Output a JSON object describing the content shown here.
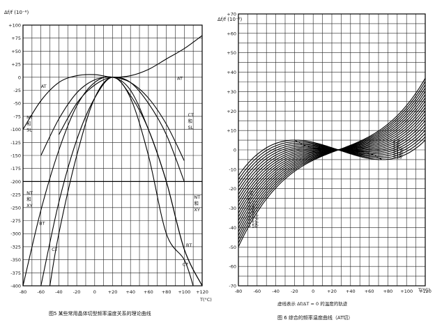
{
  "chart_data": [
    {
      "type": "line",
      "ylabel": "Δf/f (10⁻⁶)",
      "xlabel": "T(°C)",
      "caption": "图5 某些常用晶体切型频率温度关系的理论曲线",
      "xlim": [
        -80,
        120
      ],
      "ylim": [
        -400,
        100
      ],
      "x_ticks": [
        "-80",
        "-60",
        "-40",
        "-20",
        "0",
        "+20",
        "+40",
        "+60",
        "+80",
        "+100",
        "+120"
      ],
      "y_ticks": [
        "+100",
        "+75",
        "+50",
        "+25",
        "0",
        "-25",
        "-50",
        "-75",
        "-100",
        "-125",
        "-150",
        "-175",
        "-200",
        "-225",
        "-250",
        "-275",
        "-300",
        "-325",
        "-350",
        "-375",
        "-400"
      ],
      "grid": true,
      "series": [
        {
          "name": "AT",
          "x": [
            -80,
            -60,
            -40,
            -20,
            0,
            20,
            40,
            60,
            80,
            100,
            120
          ],
          "y": [
            -100,
            -45,
            -10,
            3,
            5,
            0,
            3,
            15,
            35,
            55,
            80
          ]
        },
        {
          "name": "NT 和 SL",
          "x": [
            -60,
            -40,
            -20,
            0,
            20,
            40,
            60,
            80,
            100
          ],
          "y": [
            -150,
            -80,
            -30,
            -5,
            0,
            -10,
            -40,
            -90,
            -160
          ]
        },
        {
          "name": "CT 和 SL",
          "x": [
            -40,
            -20,
            0,
            20,
            40,
            60,
            80,
            100
          ],
          "y": [
            -110,
            -50,
            -15,
            0,
            -10,
            -50,
            -110,
            -200
          ]
        },
        {
          "name": "NT 和 XY",
          "x": [
            -80,
            -60,
            -40,
            -20,
            0,
            20,
            40,
            60,
            80,
            100,
            120
          ],
          "y": [
            -400,
            -255,
            -140,
            -55,
            -10,
            0,
            -25,
            -100,
            -200,
            -330,
            -400
          ]
        },
        {
          "name": "BT",
          "x": [
            -60,
            -40,
            -20,
            0,
            20,
            40,
            60,
            80,
            100,
            120
          ],
          "y": [
            -400,
            -240,
            -120,
            -40,
            0,
            -35,
            -100,
            -200,
            -330,
            -400
          ]
        },
        {
          "name": "CT",
          "x": [
            -50,
            -40,
            -20,
            0,
            20,
            40,
            60,
            80,
            100,
            110
          ],
          "y": [
            -400,
            -300,
            -150,
            -40,
            0,
            -40,
            -150,
            -300,
            -350,
            -400
          ]
        }
      ],
      "hline": -200,
      "curve_labels": [
        {
          "text": "AT",
          "x": -60,
          "y": -20
        },
        {
          "text": "NT",
          "x": -76,
          "y": -80
        },
        {
          "text": "和",
          "x": -76,
          "y": -92
        },
        {
          "text": "SL",
          "x": -76,
          "y": -104
        },
        {
          "text": "AT",
          "x": 92,
          "y": -5
        },
        {
          "text": "CT",
          "x": 104,
          "y": -75
        },
        {
          "text": "和",
          "x": 104,
          "y": -87
        },
        {
          "text": "SL",
          "x": 104,
          "y": -99
        },
        {
          "text": "NT",
          "x": -76,
          "y": -225
        },
        {
          "text": "和",
          "x": -76,
          "y": -237
        },
        {
          "text": "XY",
          "x": -76,
          "y": -249
        },
        {
          "text": "BT",
          "x": -62,
          "y": -283
        },
        {
          "text": "CT",
          "x": -48,
          "y": -333
        },
        {
          "text": "NT",
          "x": 111,
          "y": -233
        },
        {
          "text": "和",
          "x": 111,
          "y": -245
        },
        {
          "text": "XY",
          "x": 111,
          "y": -257
        },
        {
          "text": "BT",
          "x": 102,
          "y": -325
        },
        {
          "text": "CT",
          "x": 98,
          "y": -362
        }
      ]
    },
    {
      "type": "line",
      "ylabel": "Δf/f (10⁻⁶)",
      "xlabel": "T(°C)",
      "caption": "图 6 综合的频率温度曲线（AT切）",
      "footnote": "虚线表示 Δf/ΔT = 0 的温度的轨迹",
      "xlim": [
        -80,
        120
      ],
      "ylim": [
        -70,
        70
      ],
      "x_ticks": [
        "-80",
        "-60",
        "-40",
        "-20",
        "0",
        "+20",
        "+40",
        "+60",
        "+80",
        "+100",
        "+120"
      ],
      "y_ticks": [
        "+70",
        "+60",
        "+50",
        "+40",
        "+30",
        "+20",
        "+10",
        "0",
        "-10",
        "-20",
        "-30",
        "-40",
        "-50",
        "-60",
        "-70"
      ],
      "grid": true,
      "center": [
        27,
        0
      ],
      "angles_min": [
        -20,
        -18,
        -16,
        -14,
        -12,
        -10,
        -8,
        -6,
        -4,
        -2,
        0,
        2,
        4,
        6,
        8,
        10,
        12,
        14,
        16,
        18
      ],
      "angle_labels": [
        "+16'",
        "+14'",
        "+12'",
        "+10'",
        "+8'",
        "+6'",
        "+4'",
        "+2'",
        "0'",
        "-2'",
        "-4'",
        "+2'",
        "+4'",
        "+6'",
        "+8'",
        "+10'",
        "+12'",
        "+14'",
        "+16'",
        "+18'"
      ],
      "grid_cells": 10
    }
  ]
}
